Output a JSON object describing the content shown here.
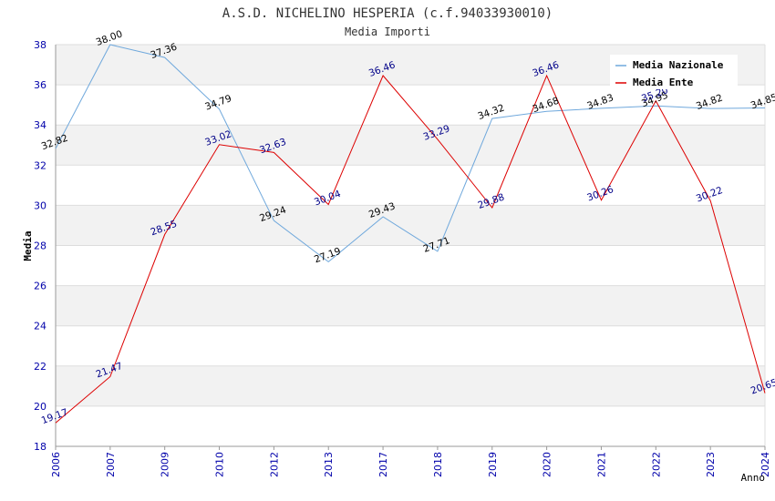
{
  "chart_data": {
    "type": "line",
    "title": "A.S.D. NICHELINO HESPERIA (c.f.94033930010)",
    "subtitle": "Media Importi",
    "xlabel": "Anno",
    "ylabel": "Media",
    "ylim": [
      18,
      38
    ],
    "yticks": [
      18,
      20,
      22,
      24,
      26,
      28,
      30,
      32,
      34,
      36,
      38
    ],
    "grid": true,
    "legend_position": "top-right",
    "categories": [
      "2006",
      "2007",
      "2009",
      "2010",
      "2012",
      "2013",
      "2017",
      "2018",
      "2019",
      "2020",
      "2021",
      "2022",
      "2023",
      "2024"
    ],
    "series": [
      {
        "name": "Media Nazionale",
        "color": "#6fa8dc",
        "values": [
          32.82,
          38.0,
          37.36,
          34.79,
          29.24,
          27.19,
          29.43,
          27.71,
          34.32,
          34.68,
          34.83,
          34.95,
          34.82,
          34.85
        ],
        "labels": [
          "32.82",
          "38.00",
          "37.36",
          "34.79",
          "29.24",
          "27.19",
          "29.43",
          "27.71",
          "34.32",
          "34.68",
          "34.83",
          "34.95",
          "34.82",
          "34.85"
        ]
      },
      {
        "name": "Media Ente",
        "color": "#dd0000",
        "values": [
          19.17,
          21.47,
          28.55,
          33.02,
          32.63,
          30.04,
          36.46,
          33.29,
          29.88,
          36.46,
          30.26,
          35.2,
          30.22,
          20.65
        ],
        "labels": [
          "19.17",
          "21.47",
          "28.55",
          "33.02",
          "32.63",
          "30.04",
          "36.46",
          "33.29",
          "29.88",
          "36.46",
          "30.26",
          "35.20",
          "30.22",
          "20.65"
        ]
      }
    ]
  }
}
